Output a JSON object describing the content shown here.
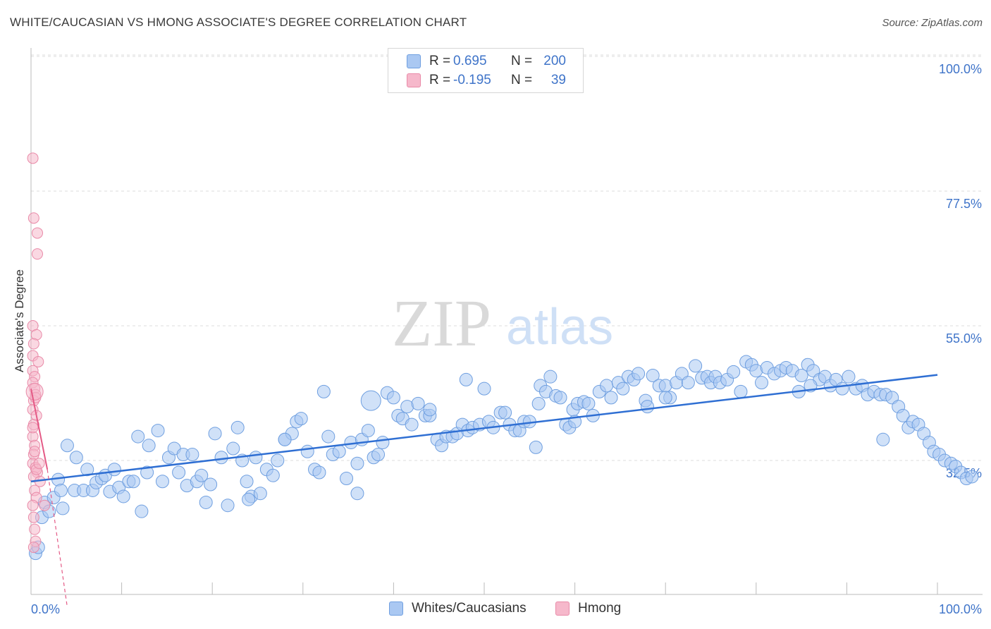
{
  "title": "WHITE/CAUCASIAN VS HMONG ASSOCIATE'S DEGREE CORRELATION CHART",
  "source": "Source: ZipAtlas.com",
  "watermark": {
    "zip": "ZIP",
    "atlas": "atlas"
  },
  "legend": {
    "rows": [
      {
        "r_label": "R =",
        "r_value": "0.695",
        "n_label": "N =",
        "n_value": "200",
        "color": "#aac8f2"
      },
      {
        "r_label": "R =",
        "r_value": "-0.195",
        "n_label": "N =",
        "n_value": "39",
        "color": "#f6b8cb"
      }
    ]
  },
  "bottom_legend": {
    "series1": "Whites/Caucasians",
    "series2": "Hmong"
  },
  "colors": {
    "blue_fill": "#aac8f2",
    "blue_stroke": "#6f9fe0",
    "blue_line": "#2f6fd3",
    "pink_fill": "#f6b8cb",
    "pink_stroke": "#e98aa8",
    "pink_line": "#e45a86",
    "accent_text": "#3f74c9"
  },
  "chart_data": {
    "type": "scatter",
    "title": "WHITE/CAUCASIAN VS HMONG ASSOCIATE'S DEGREE CORRELATION CHART",
    "ylabel": "Associate's Degree",
    "xlabel": "",
    "xlim": [
      0,
      100
    ],
    "ylim": [
      10,
      102
    ],
    "y_ticks": [
      32.5,
      55.0,
      77.5,
      100.0
    ],
    "y_tick_labels": [
      "32.5%",
      "55.0%",
      "77.5%",
      "100.0%"
    ],
    "x_tick_labels": [
      "0.0%",
      "100.0%"
    ],
    "series": [
      {
        "name": "Whites/Caucasians",
        "r": 0.695,
        "n": 200,
        "trend": {
          "x0": 0,
          "y0": 31.0,
          "x1": 100,
          "y1": 48.8
        },
        "points": [
          [
            0.5,
            19
          ],
          [
            0.8,
            20
          ],
          [
            1.2,
            25
          ],
          [
            1.5,
            27.5
          ],
          [
            2,
            26
          ],
          [
            2.5,
            28.3
          ],
          [
            3,
            31.3
          ],
          [
            3.3,
            29.5
          ],
          [
            3.5,
            26.5
          ],
          [
            4,
            37
          ],
          [
            4.8,
            29.5
          ],
          [
            5,
            35
          ],
          [
            5.8,
            29.5
          ],
          [
            6.2,
            33
          ],
          [
            6.8,
            29.5
          ],
          [
            7.2,
            30.8
          ],
          [
            7.8,
            31.5
          ],
          [
            8.2,
            32
          ],
          [
            8.7,
            29.3
          ],
          [
            9.2,
            33
          ],
          [
            9.7,
            30
          ],
          [
            10.2,
            28.5
          ],
          [
            10.8,
            31
          ],
          [
            11.3,
            31
          ],
          [
            11.8,
            38.5
          ],
          [
            12.2,
            26
          ],
          [
            12.8,
            32.5
          ],
          [
            13,
            37
          ],
          [
            14,
            39.5
          ],
          [
            14.5,
            31
          ],
          [
            15.2,
            35
          ],
          [
            15.8,
            36.5
          ],
          [
            16.3,
            32.5
          ],
          [
            16.8,
            35.5
          ],
          [
            17.2,
            30.3
          ],
          [
            17.8,
            35.5
          ],
          [
            18.3,
            31
          ],
          [
            18.8,
            32
          ],
          [
            19.3,
            27.5
          ],
          [
            19.8,
            30.5
          ],
          [
            20.3,
            39
          ],
          [
            21,
            35
          ],
          [
            21.7,
            27
          ],
          [
            22.3,
            36.5
          ],
          [
            22.8,
            40
          ],
          [
            23.3,
            34.5
          ],
          [
            23.8,
            31
          ],
          [
            24.3,
            28.5
          ],
          [
            24.8,
            35
          ],
          [
            25.3,
            29
          ],
          [
            26,
            33
          ],
          [
            26.7,
            32
          ],
          [
            27.2,
            34.5
          ],
          [
            28,
            38
          ],
          [
            28.8,
            39
          ],
          [
            29.3,
            41
          ],
          [
            29.8,
            41.5
          ],
          [
            30.5,
            36
          ],
          [
            31.3,
            33
          ],
          [
            31.8,
            32.5
          ],
          [
            32.3,
            46
          ],
          [
            32.8,
            38.5
          ],
          [
            33.3,
            35.5
          ],
          [
            34,
            36
          ],
          [
            34.8,
            31.5
          ],
          [
            35.3,
            37.5
          ],
          [
            36,
            34
          ],
          [
            36.5,
            38
          ],
          [
            37.2,
            39.5
          ],
          [
            37.8,
            35
          ],
          [
            38.3,
            35.5
          ],
          [
            38.8,
            37.5
          ],
          [
            39.3,
            45.8
          ],
          [
            40,
            45
          ],
          [
            40.5,
            42
          ],
          [
            41,
            41.5
          ],
          [
            41.5,
            43.5
          ],
          [
            42,
            40.5
          ],
          [
            42.7,
            44
          ],
          [
            43.5,
            42
          ],
          [
            44,
            42
          ],
          [
            44.8,
            38
          ],
          [
            45.3,
            37
          ],
          [
            45.8,
            38.5
          ],
          [
            46.5,
            38.5
          ],
          [
            47,
            39
          ],
          [
            47.6,
            40.5
          ],
          [
            48.2,
            39.5
          ],
          [
            48.7,
            40
          ],
          [
            49.5,
            40.5
          ],
          [
            50,
            46.5
          ],
          [
            50.5,
            41
          ],
          [
            51,
            40
          ],
          [
            51.8,
            42.5
          ],
          [
            52.3,
            42.5
          ],
          [
            52.8,
            40.5
          ],
          [
            53.4,
            39.5
          ],
          [
            53.9,
            39.5
          ],
          [
            54.4,
            41
          ],
          [
            55,
            41
          ],
          [
            55.7,
            36.7
          ],
          [
            56.2,
            47
          ],
          [
            56.8,
            46
          ],
          [
            57.3,
            48.5
          ],
          [
            57.9,
            45.3
          ],
          [
            58.4,
            45
          ],
          [
            59,
            40.5
          ],
          [
            59.4,
            40
          ],
          [
            59.8,
            43
          ],
          [
            60.3,
            44
          ],
          [
            61,
            44.3
          ],
          [
            61.5,
            44
          ],
          [
            62,
            42
          ],
          [
            62.7,
            46
          ],
          [
            63.5,
            47
          ],
          [
            64,
            45
          ],
          [
            64.8,
            47.5
          ],
          [
            65.3,
            46.5
          ],
          [
            65.9,
            48.5
          ],
          [
            66.5,
            48
          ],
          [
            67,
            49
          ],
          [
            67.8,
            44.5
          ],
          [
            68,
            43.5
          ],
          [
            68.6,
            48.7
          ],
          [
            69.3,
            47
          ],
          [
            70,
            47
          ],
          [
            70.5,
            45
          ],
          [
            71.2,
            47.5
          ],
          [
            71.8,
            49
          ],
          [
            72.5,
            47.5
          ],
          [
            73.3,
            50.3
          ],
          [
            74,
            48.3
          ],
          [
            74.6,
            48.5
          ],
          [
            75,
            47.5
          ],
          [
            75.5,
            48.5
          ],
          [
            76,
            47.5
          ],
          [
            76.8,
            48
          ],
          [
            77.5,
            49.3
          ],
          [
            78.3,
            46
          ],
          [
            78.9,
            51
          ],
          [
            79.5,
            50.5
          ],
          [
            80,
            49.5
          ],
          [
            80.6,
            47.5
          ],
          [
            81.2,
            50
          ],
          [
            82,
            49
          ],
          [
            82.7,
            49.5
          ],
          [
            83.3,
            50
          ],
          [
            84,
            49.5
          ],
          [
            84.7,
            46
          ],
          [
            85,
            48.7
          ],
          [
            85.7,
            50.5
          ],
          [
            86.3,
            49.5
          ],
          [
            87,
            48
          ],
          [
            87.6,
            48.5
          ],
          [
            88.2,
            47
          ],
          [
            88.8,
            48
          ],
          [
            89.5,
            46.5
          ],
          [
            90.2,
            48.5
          ],
          [
            91,
            46.5
          ],
          [
            91.7,
            47
          ],
          [
            92.3,
            45.5
          ],
          [
            93,
            46
          ],
          [
            93.7,
            45.5
          ],
          [
            94.3,
            45.5
          ],
          [
            95,
            45
          ],
          [
            95.7,
            43.5
          ],
          [
            96.2,
            42
          ],
          [
            96.8,
            40
          ],
          [
            97.3,
            41
          ],
          [
            97.9,
            40.5
          ],
          [
            98.5,
            39
          ],
          [
            99.1,
            37.5
          ],
          [
            99.6,
            36
          ],
          [
            100.2,
            35.5
          ],
          [
            100.8,
            34.5
          ],
          [
            101.5,
            34
          ],
          [
            102,
            33.5
          ],
          [
            102.6,
            32.5
          ],
          [
            103.2,
            31.5
          ],
          [
            103.8,
            31.8
          ],
          [
            28,
            38
          ],
          [
            44,
            43
          ],
          [
            48,
            48
          ],
          [
            36,
            29
          ],
          [
            24,
            28
          ],
          [
            56,
            44
          ],
          [
            60,
            41
          ],
          [
            70,
            45
          ],
          [
            94,
            38
          ],
          [
            86,
            47
          ]
        ]
      },
      {
        "name": "Hmong",
        "r": -0.195,
        "n": 39,
        "trend": {
          "x0": 0,
          "y0": 46.5,
          "x1": 1.8,
          "y1": 33.0
        },
        "trend_dashed": {
          "x0": 1.8,
          "y0": 33.0,
          "x1": 4.0,
          "y1": 10.0
        },
        "points": [
          [
            0.2,
            85
          ],
          [
            0.3,
            75
          ],
          [
            0.7,
            72.5
          ],
          [
            0.7,
            69
          ],
          [
            0.2,
            57
          ],
          [
            0.6,
            55.5
          ],
          [
            0.3,
            54
          ],
          [
            0.2,
            52
          ],
          [
            0.8,
            51
          ],
          [
            0.2,
            49.5
          ],
          [
            0.4,
            48.5
          ],
          [
            0.2,
            47.5
          ],
          [
            0.4,
            46.5
          ],
          [
            0.5,
            45.5
          ],
          [
            0.3,
            44.5
          ],
          [
            0.2,
            43
          ],
          [
            0.6,
            42
          ],
          [
            0.3,
            40.5
          ],
          [
            0.2,
            38.5
          ],
          [
            0.4,
            37
          ],
          [
            0.3,
            35.5
          ],
          [
            0.2,
            34
          ],
          [
            0.5,
            33.3
          ],
          [
            0.7,
            32.5
          ],
          [
            0.3,
            31.8
          ],
          [
            1,
            31
          ],
          [
            0.4,
            29.5
          ],
          [
            0.6,
            28.3
          ],
          [
            0.2,
            27
          ],
          [
            1.5,
            27
          ],
          [
            0.3,
            25
          ],
          [
            0.4,
            23
          ],
          [
            0.5,
            21
          ],
          [
            0.3,
            20
          ],
          [
            0.6,
            33
          ],
          [
            0.5,
            45
          ],
          [
            0.2,
            40
          ],
          [
            0.9,
            34
          ],
          [
            0.4,
            36
          ]
        ]
      }
    ]
  }
}
